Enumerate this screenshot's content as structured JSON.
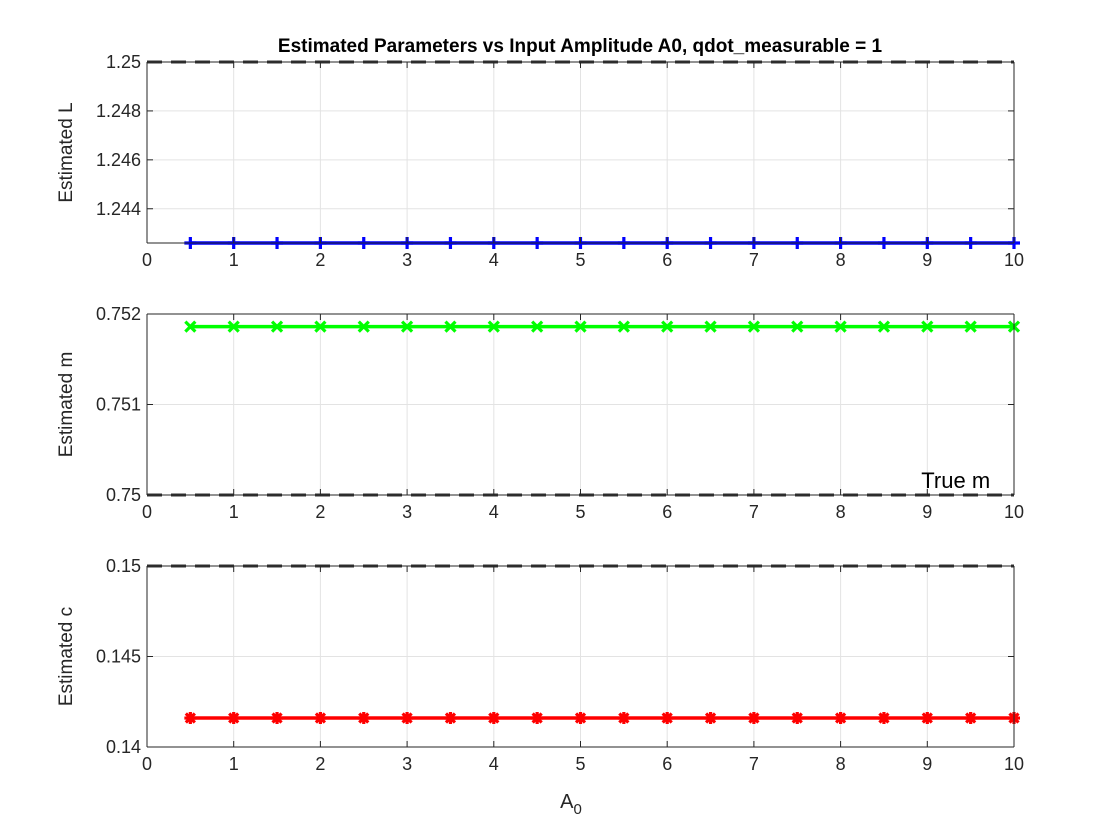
{
  "figure": {
    "title": "Estimated Parameters vs Input Amplitude A0, qdot_measurable = 1",
    "xlabel_base": "A",
    "xlabel_sub": "0"
  },
  "chart_data": [
    {
      "type": "line",
      "title": "Estimated Parameters vs Input Amplitude A0, qdot_measurable = 1",
      "xlabel": "",
      "ylabel": "Estimated L",
      "xlim": [
        0,
        10
      ],
      "ylim": [
        1.2426,
        1.25
      ],
      "x_ticks": [
        "0",
        "1",
        "2",
        "3",
        "4",
        "5",
        "6",
        "7",
        "8",
        "9",
        "10"
      ],
      "y_ticks": [
        "1.244",
        "1.246",
        "1.248",
        "1.25"
      ],
      "y_tick_values": [
        1.244,
        1.246,
        1.248,
        1.25
      ],
      "grid": true,
      "series": [
        {
          "color": "#0000ff",
          "marker": "plus",
          "x": [
            0.5,
            1,
            1.5,
            2,
            2.5,
            3,
            3.5,
            4,
            4.5,
            5,
            5.5,
            6,
            6.5,
            7,
            7.5,
            8,
            8.5,
            9,
            9.5,
            10
          ],
          "values": [
            1.2426,
            1.2426,
            1.2426,
            1.2426,
            1.2426,
            1.2426,
            1.2426,
            1.2426,
            1.2426,
            1.2426,
            1.2426,
            1.2426,
            1.2426,
            1.2426,
            1.2426,
            1.2426,
            1.2426,
            1.2426,
            1.2426,
            1.2426
          ]
        }
      ],
      "reference_line": {
        "y": 1.25,
        "style": "dashed",
        "color": "#333333"
      },
      "annotation": null
    },
    {
      "type": "line",
      "title": "",
      "xlabel": "",
      "ylabel": "Estimated m",
      "xlim": [
        0,
        10
      ],
      "ylim": [
        0.75,
        0.752
      ],
      "x_ticks": [
        "0",
        "1",
        "2",
        "3",
        "4",
        "5",
        "6",
        "7",
        "8",
        "9",
        "10"
      ],
      "y_ticks": [
        "0.75",
        "0.751",
        "0.752"
      ],
      "y_tick_values": [
        0.75,
        0.751,
        0.752
      ],
      "grid": true,
      "series": [
        {
          "color": "#00ff00",
          "marker": "x",
          "x": [
            0.5,
            1,
            1.5,
            2,
            2.5,
            3,
            3.5,
            4,
            4.5,
            5,
            5.5,
            6,
            6.5,
            7,
            7.5,
            8,
            8.5,
            9,
            9.5,
            10
          ],
          "values": [
            0.75186,
            0.75186,
            0.75186,
            0.75186,
            0.75186,
            0.75186,
            0.75186,
            0.75186,
            0.75186,
            0.75186,
            0.75186,
            0.75186,
            0.75186,
            0.75186,
            0.75186,
            0.75186,
            0.75186,
            0.75186,
            0.75186,
            0.75186
          ]
        }
      ],
      "reference_line": {
        "y": 0.75,
        "style": "dashed",
        "color": "#333333"
      },
      "annotation": {
        "text": "True m",
        "x": 9,
        "y": 0.75008
      }
    },
    {
      "type": "line",
      "title": "",
      "xlabel": "A0",
      "ylabel": "Estimated c",
      "xlim": [
        0,
        10
      ],
      "ylim": [
        0.14,
        0.15
      ],
      "x_ticks": [
        "0",
        "1",
        "2",
        "3",
        "4",
        "5",
        "6",
        "7",
        "8",
        "9",
        "10"
      ],
      "y_ticks": [
        "0.14",
        "0.145",
        "0.15"
      ],
      "y_tick_values": [
        0.14,
        0.145,
        0.15
      ],
      "grid": true,
      "series": [
        {
          "color": "#ff0000",
          "marker": "asterisk",
          "x": [
            0.5,
            1,
            1.5,
            2,
            2.5,
            3,
            3.5,
            4,
            4.5,
            5,
            5.5,
            6,
            6.5,
            7,
            7.5,
            8,
            8.5,
            9,
            9.5,
            10
          ],
          "values": [
            0.1416,
            0.1416,
            0.1416,
            0.1416,
            0.1416,
            0.1416,
            0.1416,
            0.1416,
            0.1416,
            0.1416,
            0.1416,
            0.1416,
            0.1416,
            0.1416,
            0.1416,
            0.1416,
            0.1416,
            0.1416,
            0.1416,
            0.1416
          ]
        }
      ],
      "reference_line": {
        "y": 0.15,
        "style": "dashed",
        "color": "#333333"
      },
      "annotation": null
    }
  ]
}
